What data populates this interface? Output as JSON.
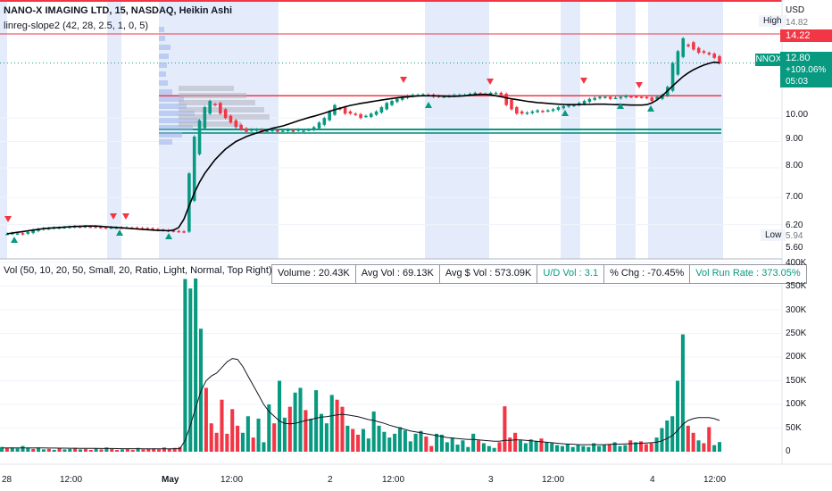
{
  "header": {
    "title": "NANO-X IMAGING LTD, 15, NASDAQ, Heikin Ashi",
    "indicator": "linreg-slope2 (42, 28, 2.5, 1, 0, 5)",
    "vol_indicator": "Vol (50, 10, 20, 50, Small, 20, Ratio, Light, Normal, Top Right)"
  },
  "price_axis": {
    "currency": "USD",
    "ticks": [
      "10.00",
      "9.00",
      "8.00",
      "7.00",
      "6.20",
      "5.60"
    ],
    "high_label": "High",
    "high_value": "14.82",
    "low_label": "Low",
    "low_value": "5.94",
    "level_value": "14.22",
    "symbol_badge": "NNOX",
    "last_price": "12.80",
    "change_pct": "+109.06%",
    "countdown": "05:03"
  },
  "volume_axis": {
    "ticks": [
      "400K",
      "350K",
      "300K",
      "250K",
      "200K",
      "150K",
      "100K",
      "50K",
      "0"
    ]
  },
  "time_axis": {
    "labels": [
      {
        "text": "28",
        "bold": false
      },
      {
        "text": "12:00",
        "bold": false
      },
      {
        "text": "May",
        "bold": true
      },
      {
        "text": "12:00",
        "bold": false
      },
      {
        "text": "2",
        "bold": false
      },
      {
        "text": "12:00",
        "bold": false
      },
      {
        "text": "3",
        "bold": false
      },
      {
        "text": "12:00",
        "bold": false
      },
      {
        "text": "4",
        "bold": false
      },
      {
        "text": "12:00",
        "bold": false
      }
    ]
  },
  "stats": {
    "volume": "Volume : 20.43K",
    "avg_vol": "Avg Vol : 69.13K",
    "avg_dollar_vol": "Avg $ Vol : 573.09K",
    "ud_vol": "U/D Vol : 3.1",
    "pct_chg": "% Chg : -70.45%",
    "vol_run_rate": "Vol Run Rate : 373.05%"
  },
  "colors": {
    "up": "#089981",
    "down": "#f23645",
    "session_band": "#dbe5fb",
    "regression": "#000000",
    "level_red": "#f23645",
    "level_teal": "#089981",
    "badge_blue": "#2962ff"
  },
  "chart_data": [
    {
      "type": "candlestick",
      "title": "NANO-X IMAGING LTD, 15, NASDAQ, Heikin Ashi",
      "y_unit": "USD",
      "ylim": [
        5.5,
        15.2
      ],
      "scale": "log",
      "x_labels": [
        "28",
        "12:00",
        "May",
        "12:00",
        "2",
        "12:00",
        "3",
        "12:00",
        "4",
        "12:00"
      ],
      "close": [
        5.95,
        5.97,
        5.96,
        5.94,
        6.0,
        6.05,
        6.08,
        6.1,
        6.1,
        6.12,
        6.12,
        6.13,
        6.14,
        6.15,
        6.14,
        6.15,
        6.14,
        6.13,
        6.12,
        6.11,
        6.12,
        6.12,
        6.11,
        6.12,
        6.11,
        6.1,
        6.1,
        6.09,
        6.06,
        6.05,
        6.04,
        6.03,
        6.02,
        6.01,
        6.0,
        7.8,
        9.2,
        9.9,
        10.5,
        10.8,
        10.6,
        10.2,
        10.0,
        9.8,
        9.6,
        9.5,
        9.4,
        9.5,
        9.5,
        9.4,
        9.45,
        9.5,
        9.4,
        9.45,
        9.5,
        9.4,
        9.5,
        9.45,
        9.5,
        9.6,
        9.8,
        10.0,
        10.3,
        10.6,
        10.4,
        10.2,
        10.2,
        10.15,
        10.0,
        10.1,
        10.2,
        10.3,
        10.5,
        10.7,
        10.8,
        10.9,
        11.0,
        11.05,
        11.1,
        11.1,
        11.12,
        11.1,
        11.0,
        11.0,
        11.02,
        11.05,
        11.1,
        11.1,
        11.1,
        11.15,
        11.2,
        11.1,
        11.15,
        11.2,
        11.2,
        11.1,
        10.6,
        10.4,
        10.2,
        10.2,
        10.25,
        10.3,
        10.35,
        10.3,
        10.35,
        10.4,
        10.5,
        10.55,
        10.6,
        10.6,
        10.7,
        10.8,
        10.9,
        10.95,
        11.0,
        11.0,
        10.9,
        10.95,
        11.0,
        11.05,
        11.0,
        11.0,
        10.98,
        10.95,
        10.8,
        11.0,
        11.1,
        11.5,
        12.8,
        13.5,
        14.3,
        13.8,
        13.6,
        13.4,
        13.4,
        13.3,
        13.1,
        12.8
      ],
      "regression": [
        5.95,
        5.97,
        5.99,
        6.01,
        6.03,
        6.05,
        6.07,
        6.09,
        6.1,
        6.11,
        6.12,
        6.13,
        6.14,
        6.15,
        6.15,
        6.16,
        6.16,
        6.16,
        6.15,
        6.14,
        6.13,
        6.12,
        6.11,
        6.1,
        6.09,
        6.08,
        6.07,
        6.06,
        6.05,
        6.04,
        6.04,
        6.03,
        6.05,
        6.12,
        6.35,
        6.75,
        7.15,
        7.5,
        7.8,
        8.05,
        8.3,
        8.5,
        8.7,
        8.85,
        9.0,
        9.1,
        9.2,
        9.28,
        9.35,
        9.42,
        9.48,
        9.55,
        9.6,
        9.65,
        9.72,
        9.8,
        9.88,
        9.95,
        10.02,
        10.08,
        10.15,
        10.22,
        10.3,
        10.38,
        10.45,
        10.52,
        10.58,
        10.63,
        10.68,
        10.72,
        10.76,
        10.8,
        10.84,
        10.88,
        10.92,
        10.95,
        10.98,
        11.0,
        11.02,
        11.04,
        11.05,
        11.05,
        11.05,
        11.04,
        11.03,
        11.02,
        11.02,
        11.03,
        11.05,
        11.08,
        11.1,
        11.12,
        11.12,
        11.1,
        11.05,
        11.0,
        10.95,
        10.9,
        10.86,
        10.82,
        10.78,
        10.75,
        10.72,
        10.7,
        10.68,
        10.66,
        10.64,
        10.63,
        10.62,
        10.62,
        10.62,
        10.63,
        10.63,
        10.64,
        10.64,
        10.64,
        10.63,
        10.62,
        10.62,
        10.61,
        10.6,
        10.6,
        10.6,
        10.62,
        10.7,
        10.85,
        11.05,
        11.3,
        11.55,
        11.8,
        12.05,
        12.25,
        12.42,
        12.56,
        12.68,
        12.78,
        12.85,
        12.8
      ],
      "levels": [
        14.22,
        11.05,
        9.38,
        9.3
      ],
      "high": 14.82,
      "low": 5.94,
      "last": 12.8,
      "change_pct": 109.06
    },
    {
      "type": "bar",
      "title": "Vol (50, 10, 20, 50, Small, 20, Ratio, Light, Normal, Top Right)",
      "ylim": [
        0,
        400000
      ],
      "values": [
        10000,
        8000,
        9000,
        7000,
        12000,
        8000,
        6000,
        9000,
        5000,
        6000,
        4000,
        7000,
        5000,
        6000,
        8000,
        5000,
        6000,
        4000,
        7000,
        5000,
        9000,
        6000,
        4000,
        5000,
        6000,
        4000,
        8000,
        5000,
        6000,
        7000,
        5000,
        9000,
        6000,
        8000,
        10000,
        365000,
        345000,
        366000,
        260000,
        135000,
        60000,
        40000,
        110000,
        38000,
        90000,
        55000,
        40000,
        75000,
        30000,
        70000,
        20000,
        100000,
        60000,
        150000,
        72000,
        95000,
        125000,
        135000,
        88000,
        70000,
        130000,
        80000,
        60000,
        120000,
        110000,
        95000,
        55000,
        48000,
        36000,
        48000,
        28000,
        85000,
        55000,
        42000,
        30000,
        38000,
        52000,
        45000,
        22000,
        38000,
        44000,
        32000,
        12000,
        38000,
        36000,
        20000,
        30000,
        15000,
        24000,
        10000,
        38000,
        24000,
        18000,
        12000,
        8000,
        20000,
        96000,
        30000,
        40000,
        24000,
        18000,
        26000,
        22000,
        28000,
        20000,
        18000,
        14000,
        12000,
        16000,
        10000,
        14000,
        12000,
        10000,
        18000,
        12000,
        14000,
        16000,
        20000,
        12000,
        14000,
        24000,
        20000,
        22000,
        16000,
        18000,
        30000,
        50000,
        66000,
        75000,
        150000,
        248000,
        55000,
        40000,
        24000,
        18000,
        52000,
        14000,
        20430
      ],
      "up": [
        true,
        false,
        true,
        true,
        true,
        true,
        false,
        true,
        true,
        false,
        true,
        false,
        true,
        true,
        false,
        true,
        false,
        false,
        true,
        false,
        true,
        false,
        false,
        true,
        false,
        false,
        true,
        false,
        false,
        false,
        false,
        false,
        false,
        false,
        false,
        true,
        true,
        true,
        true,
        false,
        false,
        false,
        false,
        false,
        false,
        false,
        true,
        true,
        false,
        true,
        true,
        true,
        false,
        true,
        true,
        false,
        true,
        true,
        false,
        true,
        true,
        true,
        true,
        true,
        false,
        false,
        true,
        false,
        false,
        true,
        true,
        true,
        true,
        true,
        true,
        true,
        true,
        true,
        true,
        true,
        true,
        false,
        false,
        true,
        true,
        true,
        true,
        true,
        true,
        true,
        true,
        false,
        true,
        true,
        true,
        false,
        false,
        false,
        false,
        true,
        true,
        true,
        true,
        false,
        true,
        true,
        true,
        true,
        true,
        true,
        true,
        true,
        true,
        true,
        true,
        true,
        false,
        true,
        true,
        true,
        false,
        true,
        false,
        false,
        false,
        true,
        true,
        true,
        true,
        true,
        true,
        false,
        false,
        true,
        false,
        false,
        true,
        true
      ],
      "avg_line": [
        8000,
        8000,
        8100,
        8000,
        8200,
        8100,
        8000,
        8000,
        7900,
        7800,
        7700,
        7600,
        7500,
        7400,
        7300,
        7200,
        7100,
        7000,
        6900,
        6800,
        6800,
        6700,
        6600,
        6500,
        6500,
        6400,
        6400,
        6300,
        6300,
        6200,
        6200,
        6200,
        6300,
        6400,
        6500,
        24000,
        56000,
        92000,
        128000,
        150000,
        160000,
        166000,
        178000,
        190000,
        197000,
        195000,
        180000,
        160000,
        140000,
        120000,
        100000,
        85000,
        75000,
        65000,
        60000,
        59000,
        60000,
        63000,
        66000,
        68000,
        71000,
        73000,
        74000,
        76000,
        78000,
        79000,
        78000,
        76000,
        74000,
        71000,
        68000,
        66000,
        63000,
        60000,
        56000,
        53000,
        50000,
        47000,
        44000,
        42000,
        40000,
        38000,
        36000,
        34000,
        32000,
        30000,
        29000,
        28000,
        27000,
        26000,
        26000,
        25000,
        24000,
        23000,
        22000,
        22000,
        24000,
        24000,
        25000,
        25000,
        24000,
        23000,
        22000,
        21000,
        20000,
        19000,
        18000,
        17000,
        16000,
        16000,
        15000,
        15000,
        15000,
        15000,
        15000,
        15000,
        15500,
        16000,
        16000,
        16500,
        17000,
        17500,
        18000,
        18500,
        19000,
        20000,
        23000,
        28000,
        34000,
        45000,
        58000,
        66000,
        70000,
        72000,
        72000,
        72000,
        70000,
        66000
      ]
    }
  ]
}
